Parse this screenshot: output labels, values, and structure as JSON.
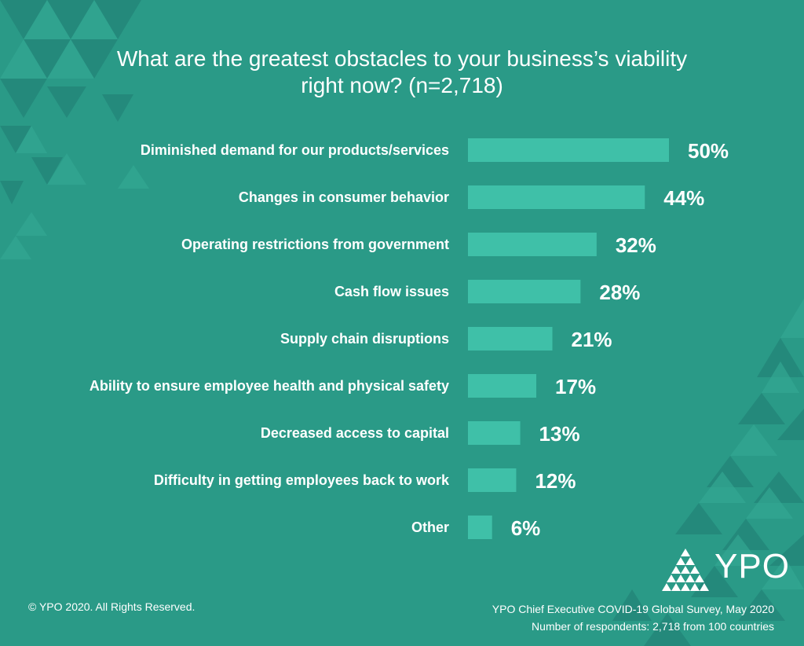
{
  "title_line1": "What are the greatest obstacles to your business’s viability",
  "title_line2": "right now? (n=2,718)",
  "colors": {
    "background": "#2a9a87",
    "bar": "#3fc0a8",
    "text": "#ffffff",
    "pattern_dark": "#23877a",
    "pattern_light": "#33a893"
  },
  "chart_data": {
    "type": "bar",
    "orientation": "horizontal",
    "categories": [
      "Diminished demand for our products/services",
      "Changes in consumer behavior",
      "Operating restrictions from government",
      "Cash flow issues",
      "Supply chain disruptions",
      "Ability to ensure employee health and physical safety",
      "Decreased access to capital",
      "Difficulty in getting employees back to work",
      "Other"
    ],
    "values": [
      50,
      44,
      32,
      28,
      21,
      17,
      13,
      12,
      6
    ],
    "value_labels": [
      "50%",
      "44%",
      "32%",
      "28%",
      "21%",
      "17%",
      "13%",
      "12%",
      "6%"
    ],
    "xlim": [
      0,
      50
    ],
    "grid": false,
    "legend": "none"
  },
  "footer": {
    "copyright": "© YPO 2020. All Rights Reserved.",
    "source_line1": "YPO Chief Executive COVID-19 Global Survey, May 2020",
    "source_line2": "Number of respondents: 2,718 from 100 countries"
  },
  "logo": {
    "text": "YPO",
    "icon": "triangle-pyramid-icon"
  }
}
